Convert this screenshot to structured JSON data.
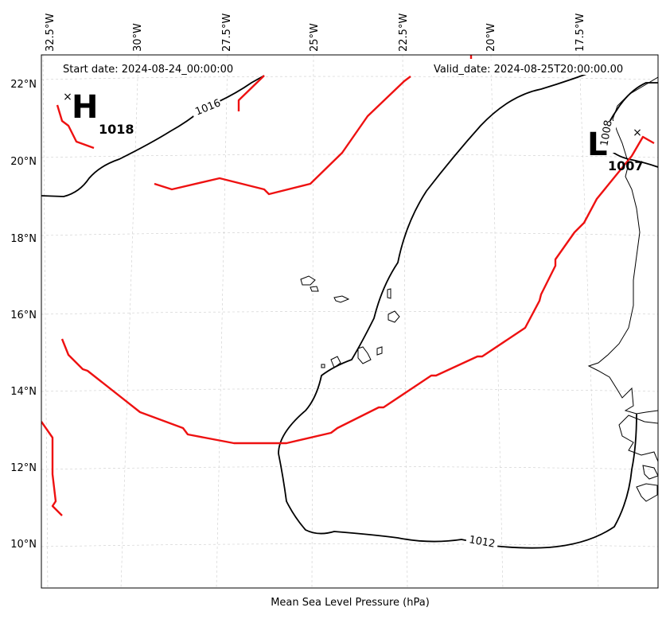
{
  "header": {
    "start_date": "Start date: 2024-08-24_00:00:00",
    "valid_date": "Valid_date: 2024-08-25T20:00:00.00"
  },
  "footer": {
    "xlabel": "Mean Sea Level Pressure (hPa)"
  },
  "axes": {
    "lon_ticks": [
      "32.5°W",
      "30°W",
      "27.5°W",
      "25°W",
      "22.5°W",
      "20°W",
      "17.5°W"
    ],
    "lat_ticks": [
      "22°N",
      "20°N",
      "18°N",
      "16°N",
      "14°N",
      "12°N",
      "10°N"
    ]
  },
  "pressure_centers": {
    "high": {
      "symbol": "H",
      "value": "1018",
      "marker": "×"
    },
    "low": {
      "symbol": "L",
      "value": "1007",
      "marker": "×"
    }
  },
  "contour_labels": {
    "c1016": "1016",
    "c1012": "1012",
    "c1008": "1008"
  },
  "colors": {
    "isobar": "#000000",
    "front": "#ee1111",
    "gridline": "#cccccc"
  }
}
